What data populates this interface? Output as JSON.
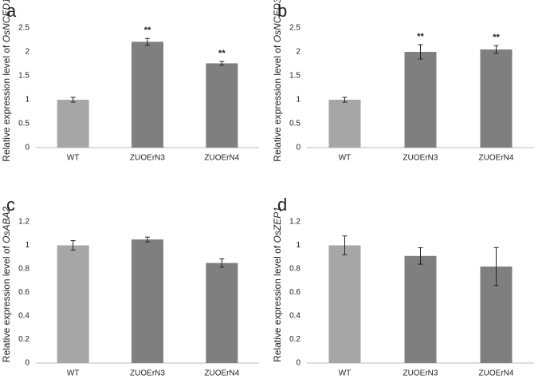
{
  "chart_data": [
    {
      "type": "bar",
      "panel": "a",
      "ylabel": "Relative expression level of ",
      "gene": "OsNCED1",
      "categories": [
        "WT",
        "ZUOErN3",
        "ZUOErN4"
      ],
      "values": [
        1.0,
        2.21,
        1.76
      ],
      "errors": [
        0.05,
        0.07,
        0.04
      ],
      "colors": [
        "#a6a6a6",
        "#7f7f7f",
        "#7f7f7f"
      ],
      "annotations": [
        null,
        "**",
        "**"
      ],
      "ylim": [
        0,
        2.5
      ],
      "yticks": [
        0,
        0.5,
        1,
        1.5,
        2,
        2.5
      ]
    },
    {
      "type": "bar",
      "panel": "b",
      "ylabel": "Relative expression level of ",
      "gene": "OsNCED3",
      "categories": [
        "WT",
        "ZUOErN3",
        "ZUOErN4"
      ],
      "values": [
        1.0,
        2.0,
        2.05
      ],
      "errors": [
        0.05,
        0.15,
        0.08
      ],
      "colors": [
        "#a6a6a6",
        "#7f7f7f",
        "#7f7f7f"
      ],
      "annotations": [
        null,
        "**",
        "**"
      ],
      "ylim": [
        0,
        2.5
      ],
      "yticks": [
        0,
        0.5,
        1,
        1.5,
        2,
        2.5
      ]
    },
    {
      "type": "bar",
      "panel": "c",
      "ylabel": "Relative expression level of ",
      "gene": "OsABA2",
      "categories": [
        "WT",
        "ZUOErN3",
        "ZUOErN4"
      ],
      "values": [
        1.0,
        1.05,
        0.85
      ],
      "errors": [
        0.04,
        0.02,
        0.035
      ],
      "colors": [
        "#a6a6a6",
        "#7f7f7f",
        "#7f7f7f"
      ],
      "ylim": [
        0,
        1.2
      ],
      "yticks": [
        0,
        0.2,
        0.4,
        0.6,
        0.8,
        1,
        1.2
      ]
    },
    {
      "type": "bar",
      "panel": "d",
      "ylabel": "Relative expression level of ",
      "gene": "OsZEP1",
      "categories": [
        "WT",
        "ZUOErN3",
        "ZUOErN4"
      ],
      "values": [
        1.0,
        0.91,
        0.82
      ],
      "errors": [
        0.08,
        0.07,
        0.16
      ],
      "colors": [
        "#a6a6a6",
        "#7f7f7f",
        "#7f7f7f"
      ],
      "ylim": [
        0,
        1.2
      ],
      "yticks": [
        0,
        0.2,
        0.4,
        0.6,
        0.8,
        1,
        1.2
      ]
    }
  ]
}
